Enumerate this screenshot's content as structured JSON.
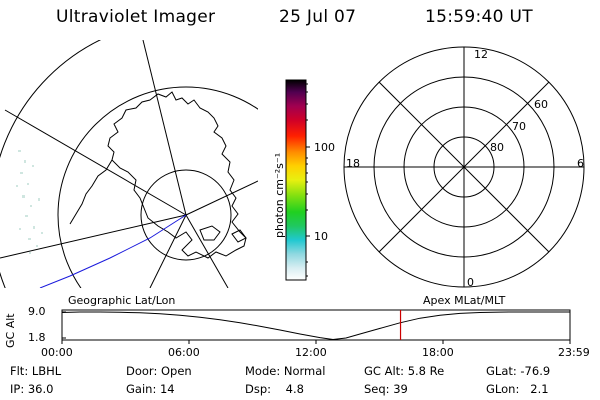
{
  "header": {
    "instrument": "Ultraviolet Imager",
    "date": "25 Jul 07",
    "time": "15:59:40 UT"
  },
  "colorbar": {
    "unit_label": "photon cm⁻²s⁻¹",
    "ticks": [
      {
        "label": "100",
        "value": 100
      },
      {
        "label": "10",
        "value": 10
      }
    ]
  },
  "polar_plot": {
    "mlt_labels": [
      "12",
      "18",
      "6",
      "0"
    ],
    "lat_labels": [
      "60",
      "70",
      "80"
    ]
  },
  "timeline": {
    "axis_label": "GC Alt",
    "left_caption": "Geographic Lat/Lon",
    "right_caption": "Apex MLat/MLT",
    "y_ticks": [
      "9.0",
      "1.8"
    ],
    "x_ticks": [
      "00:00",
      "06:00",
      "12:00",
      "18:00",
      "23:59"
    ],
    "current_time_fraction": 0.6664
  },
  "info_rows": [
    [
      {
        "label": "Flt:",
        "value": "LBHL"
      },
      {
        "label": "Door:",
        "value": "Open"
      },
      {
        "label": "Mode:",
        "value": "Normal"
      },
      {
        "label": "GC Alt:",
        "value": "5.8 Re"
      },
      {
        "label": "GLat:",
        "value": "-76.9"
      }
    ],
    [
      {
        "label": "IP:",
        "value": "36.0"
      },
      {
        "label": "Gain:",
        "value": "14"
      },
      {
        "label": "Dsp:",
        "value": "4.8"
      },
      {
        "label": "Seq:",
        "value": "39"
      },
      {
        "label": "GLon:",
        "value": "2.1"
      }
    ]
  ],
  "colors": {
    "orbit_track": "#1a1adc",
    "current_time_marker": "#cc0000"
  }
}
